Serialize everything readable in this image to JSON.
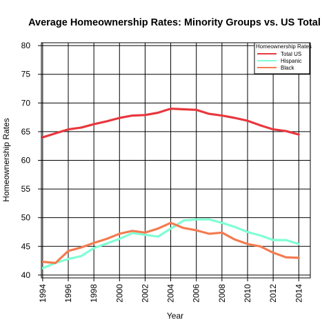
{
  "chart_data": {
    "type": "line",
    "title": "Average Homeownership Rates: Minority Groups vs. US Total",
    "xlabel": "Year",
    "ylabel": "Homeownership Rates",
    "xlim": [
      1993.9,
      2014.9
    ],
    "ylim": [
      39.5,
      80.5
    ],
    "xticks": [
      1994,
      1996,
      1998,
      2000,
      2002,
      2004,
      2006,
      2008,
      2010,
      2012,
      2014
    ],
    "yticks": [
      40,
      45,
      50,
      55,
      60,
      65,
      70,
      75,
      80
    ],
    "grid": true,
    "legend_title": "Homeownership Rates",
    "legend_position": "top-right",
    "x": [
      1994,
      1995,
      1996,
      1997,
      1998,
      1999,
      2000,
      2001,
      2002,
      2003,
      2004,
      2005,
      2006,
      2007,
      2008,
      2009,
      2010,
      2011,
      2012,
      2013,
      2014
    ],
    "series": [
      {
        "name": "Total US",
        "color": "#e8373d",
        "values": [
          64.0,
          64.7,
          65.4,
          65.7,
          66.3,
          66.8,
          67.4,
          67.8,
          67.9,
          68.3,
          69.0,
          68.9,
          68.8,
          68.1,
          67.8,
          67.4,
          66.9,
          66.1,
          65.4,
          65.1,
          64.5
        ]
      },
      {
        "name": "Hispanic",
        "color": "#7fffd4",
        "values": [
          41.2,
          42.1,
          42.8,
          43.3,
          44.7,
          45.5,
          46.3,
          47.3,
          47.0,
          46.7,
          48.1,
          49.5,
          49.7,
          49.7,
          49.1,
          48.4,
          47.5,
          46.9,
          46.1,
          46.1,
          45.4
        ]
      },
      {
        "name": "Black",
        "color": "#f47b4f",
        "values": [
          42.3,
          42.1,
          44.2,
          44.8,
          45.6,
          46.3,
          47.2,
          47.7,
          47.4,
          48.1,
          49.1,
          48.2,
          47.8,
          47.2,
          47.4,
          46.2,
          45.4,
          45.0,
          43.9,
          43.1,
          43.0
        ]
      }
    ]
  }
}
